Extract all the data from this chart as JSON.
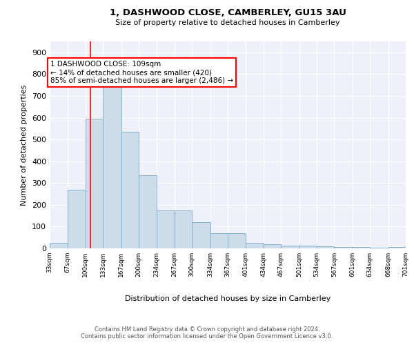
{
  "title": "1, DASHWOOD CLOSE, CAMBERLEY, GU15 3AU",
  "subtitle": "Size of property relative to detached houses in Camberley",
  "xlabel": "Distribution of detached houses by size in Camberley",
  "ylabel": "Number of detached properties",
  "bar_color": "#ccdcea",
  "bar_edge_color": "#7aaac8",
  "background_color": "#ffffff",
  "plot_bg_color": "#eef2f8",
  "grid_color": "#ffffff",
  "red_line_x": 109,
  "annotation_title": "1 DASHWOOD CLOSE: 109sqm",
  "annotation_line1": "← 14% of detached houses are smaller (420)",
  "annotation_line2": "85% of semi-detached houses are larger (2,486) →",
  "bin_edges": [
    33,
    67,
    100,
    133,
    167,
    200,
    234,
    267,
    300,
    334,
    367,
    401,
    434,
    467,
    501,
    534,
    567,
    601,
    634,
    668,
    701
  ],
  "bin_counts": [
    25,
    270,
    595,
    740,
    535,
    335,
    175,
    175,
    120,
    70,
    70,
    25,
    20,
    13,
    13,
    8,
    5,
    5,
    3,
    5
  ],
  "ylim": [
    0,
    950
  ],
  "yticks": [
    0,
    100,
    200,
    300,
    400,
    500,
    600,
    700,
    800,
    900
  ],
  "footer_line1": "Contains HM Land Registry data © Crown copyright and database right 2024.",
  "footer_line2": "Contains public sector information licensed under the Open Government Licence v3.0."
}
